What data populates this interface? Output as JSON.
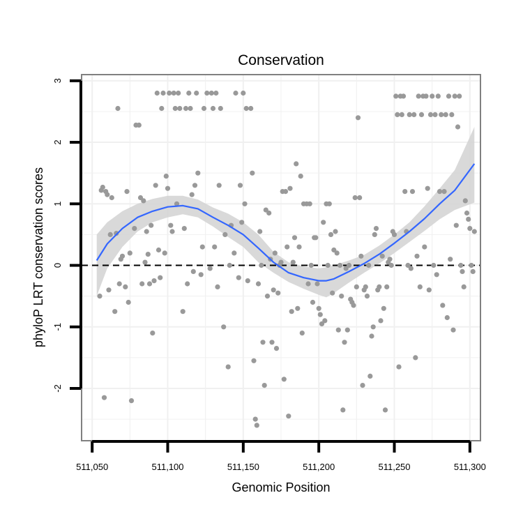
{
  "chart_data": {
    "type": "scatter",
    "title": "Conservation",
    "xlabel": "Genomic Position",
    "ylabel": "phyloP LRT conservation scores",
    "xlim": [
      511043,
      511307
    ],
    "ylim": [
      -2.85,
      3.1
    ],
    "x_ticks": [
      511050,
      511100,
      511150,
      511200,
      511250,
      511300
    ],
    "x_tick_labels": [
      "511,050",
      "511,100",
      "511,150",
      "511,200",
      "511,250",
      "511,300"
    ],
    "y_ticks": [
      -2,
      -1,
      0,
      1,
      2,
      3
    ],
    "y_tick_labels": [
      "-2",
      "-1",
      "0",
      "1",
      "2",
      "3"
    ],
    "grid": true,
    "reference_line": {
      "y": 0,
      "style": "dashed"
    },
    "colors": {
      "points": "#999999",
      "smooth": "#3366ff",
      "band": "#d2d2d2",
      "grid": "#f0f0f0",
      "frame": "#808080"
    },
    "points": [
      [
        511055,
        -0.5
      ],
      [
        511056,
        1.22
      ],
      [
        511057,
        1.27
      ],
      [
        511058,
        -2.15
      ],
      [
        511059,
        1.2
      ],
      [
        511060,
        1.15
      ],
      [
        511061,
        -0.4
      ],
      [
        511062,
        0.5
      ],
      [
        511063,
        1.1
      ],
      [
        511065,
        -0.75
      ],
      [
        511066,
        0.52
      ],
      [
        511067,
        2.55
      ],
      [
        511068,
        -0.3
      ],
      [
        511069,
        0.1
      ],
      [
        511070,
        0.15
      ],
      [
        511072,
        -0.35
      ],
      [
        511073,
        1.2
      ],
      [
        511074,
        -0.6
      ],
      [
        511075,
        0.2
      ],
      [
        511076,
        -2.2
      ],
      [
        511078,
        0.6
      ],
      [
        511079,
        2.28
      ],
      [
        511081,
        2.28
      ],
      [
        511082,
        1.1
      ],
      [
        511083,
        -0.3
      ],
      [
        511084,
        1.05
      ],
      [
        511085,
        0.05
      ],
      [
        511086,
        0.55
      ],
      [
        511087,
        0.18
      ],
      [
        511088,
        -0.3
      ],
      [
        511089,
        0.65
      ],
      [
        511090,
        -1.1
      ],
      [
        511091,
        -0.25
      ],
      [
        511092,
        1.3
      ],
      [
        511093,
        2.8
      ],
      [
        511094,
        0.25
      ],
      [
        511095,
        -0.2
      ],
      [
        511096,
        2.55
      ],
      [
        511097,
        2.8
      ],
      [
        511098,
        0.2
      ],
      [
        511099,
        1.45
      ],
      [
        511100,
        1.25
      ],
      [
        511101,
        2.8
      ],
      [
        511102,
        0.65
      ],
      [
        511103,
        0.55
      ],
      [
        511104,
        2.8
      ],
      [
        511105,
        2.55
      ],
      [
        511106,
        1.0
      ],
      [
        511107,
        2.8
      ],
      [
        511108,
        2.55
      ],
      [
        511110,
        -0.75
      ],
      [
        511111,
        0.6
      ],
      [
        511112,
        2.55
      ],
      [
        511113,
        -0.3
      ],
      [
        511114,
        2.8
      ],
      [
        511115,
        2.55
      ],
      [
        511116,
        1.15
      ],
      [
        511117,
        -0.1
      ],
      [
        511118,
        1.3
      ],
      [
        511119,
        2.8
      ],
      [
        511120,
        1.5
      ],
      [
        511122,
        -0.15
      ],
      [
        511123,
        0.3
      ],
      [
        511124,
        2.55
      ],
      [
        511126,
        2.8
      ],
      [
        511128,
        -0.05
      ],
      [
        511129,
        2.8
      ],
      [
        511130,
        2.55
      ],
      [
        511131,
        0.3
      ],
      [
        511132,
        2.8
      ],
      [
        511133,
        -0.35
      ],
      [
        511134,
        1.3
      ],
      [
        511135,
        2.55
      ],
      [
        511137,
        -1.0
      ],
      [
        511138,
        0.5
      ],
      [
        511140,
        -1.65
      ],
      [
        511141,
        0.0
      ],
      [
        511142,
        0.65
      ],
      [
        511144,
        0.2
      ],
      [
        511145,
        2.8
      ],
      [
        511147,
        -0.2
      ],
      [
        511148,
        1.3
      ],
      [
        511149,
        0.7
      ],
      [
        511150,
        2.8
      ],
      [
        511151,
        1.0
      ],
      [
        511152,
        2.55
      ],
      [
        511153,
        -0.25
      ],
      [
        511155,
        2.55
      ],
      [
        511156,
        1.5
      ],
      [
        511157,
        -1.55
      ],
      [
        511158,
        -2.5
      ],
      [
        511159,
        -2.6
      ],
      [
        511160,
        -0.3
      ],
      [
        511161,
        0.55
      ],
      [
        511162,
        0.0
      ],
      [
        511163,
        -1.25
      ],
      [
        511164,
        -1.95
      ],
      [
        511165,
        0.9
      ],
      [
        511166,
        -0.5
      ],
      [
        511167,
        0.85
      ],
      [
        511168,
        0.1
      ],
      [
        511169,
        -1.25
      ],
      [
        511170,
        -0.4
      ],
      [
        511171,
        0.2
      ],
      [
        511172,
        -1.35
      ],
      [
        511173,
        -0.45
      ],
      [
        511174,
        0.0
      ],
      [
        511175,
        0.05
      ],
      [
        511176,
        1.2
      ],
      [
        511177,
        -1.85
      ],
      [
        511178,
        1.2
      ],
      [
        511179,
        0.3
      ],
      [
        511180,
        -2.45
      ],
      [
        511181,
        1.25
      ],
      [
        511182,
        -0.75
      ],
      [
        511183,
        0.05
      ],
      [
        511184,
        0.45
      ],
      [
        511185,
        1.65
      ],
      [
        511186,
        -0.7
      ],
      [
        511187,
        0.3
      ],
      [
        511188,
        1.45
      ],
      [
        511189,
        -1.1
      ],
      [
        511190,
        1.0
      ],
      [
        511192,
        1.0
      ],
      [
        511193,
        -0.3
      ],
      [
        511194,
        1.0
      ],
      [
        511195,
        0.0
      ],
      [
        511196,
        -0.6
      ],
      [
        511197,
        0.45
      ],
      [
        511198,
        0.45
      ],
      [
        511199,
        -0.3
      ],
      [
        511200,
        -0.7
      ],
      [
        511201,
        -0.8
      ],
      [
        511202,
        -0.95
      ],
      [
        511203,
        0.7
      ],
      [
        511204,
        -0.9
      ],
      [
        511205,
        1.0
      ],
      [
        511206,
        0.0
      ],
      [
        511207,
        1.0
      ],
      [
        511208,
        0.5
      ],
      [
        511209,
        -0.45
      ],
      [
        511210,
        0.25
      ],
      [
        511211,
        0.55
      ],
      [
        511212,
        0.2
      ],
      [
        511213,
        -1.05
      ],
      [
        511214,
        0.0
      ],
      [
        511215,
        -0.5
      ],
      [
        511216,
        -2.35
      ],
      [
        511217,
        -1.25
      ],
      [
        511218,
        -0.05
      ],
      [
        511219,
        -1.05
      ],
      [
        511220,
        0.0
      ],
      [
        511221,
        -0.55
      ],
      [
        511222,
        -0.6
      ],
      [
        511223,
        -0.65
      ],
      [
        511224,
        1.1
      ],
      [
        511225,
        -0.35
      ],
      [
        511226,
        2.4
      ],
      [
        511227,
        1.1
      ],
      [
        511228,
        0.15
      ],
      [
        511229,
        -1.95
      ],
      [
        511230,
        -0.4
      ],
      [
        511231,
        -0.35
      ],
      [
        511232,
        -0.5
      ],
      [
        511233,
        0.0
      ],
      [
        511234,
        -1.8
      ],
      [
        511235,
        -1.15
      ],
      [
        511236,
        -1.0
      ],
      [
        511237,
        0.5
      ],
      [
        511238,
        0.6
      ],
      [
        511239,
        -0.4
      ],
      [
        511240,
        -0.35
      ],
      [
        511241,
        -0.9
      ],
      [
        511242,
        0.15
      ],
      [
        511243,
        -0.7
      ],
      [
        511244,
        -2.35
      ],
      [
        511245,
        -0.35
      ],
      [
        511246,
        0.05
      ],
      [
        511247,
        0.1
      ],
      [
        511248,
        0.0
      ],
      [
        511249,
        0.55
      ],
      [
        511250,
        0.5
      ],
      [
        511251,
        2.75
      ],
      [
        511252,
        2.45
      ],
      [
        511253,
        -1.65
      ],
      [
        511254,
        2.75
      ],
      [
        511255,
        2.45
      ],
      [
        511256,
        2.75
      ],
      [
        511257,
        1.2
      ],
      [
        511258,
        0.55
      ],
      [
        511259,
        0.0
      ],
      [
        511260,
        2.45
      ],
      [
        511261,
        -0.05
      ],
      [
        511262,
        1.2
      ],
      [
        511263,
        2.45
      ],
      [
        511264,
        -1.5
      ],
      [
        511265,
        0.15
      ],
      [
        511266,
        2.75
      ],
      [
        511267,
        -0.35
      ],
      [
        511268,
        2.45
      ],
      [
        511269,
        2.75
      ],
      [
        511270,
        0.3
      ],
      [
        511271,
        2.75
      ],
      [
        511272,
        1.25
      ],
      [
        511273,
        -0.4
      ],
      [
        511274,
        2.45
      ],
      [
        511275,
        2.75
      ],
      [
        511276,
        0.0
      ],
      [
        511277,
        2.45
      ],
      [
        511278,
        -0.15
      ],
      [
        511279,
        2.75
      ],
      [
        511280,
        1.2
      ],
      [
        511281,
        2.45
      ],
      [
        511282,
        -0.65
      ],
      [
        511283,
        1.2
      ],
      [
        511284,
        2.45
      ],
      [
        511285,
        -0.85
      ],
      [
        511286,
        2.75
      ],
      [
        511287,
        0.1
      ],
      [
        511288,
        2.45
      ],
      [
        511289,
        -1.05
      ],
      [
        511290,
        2.75
      ],
      [
        511291,
        0.65
      ],
      [
        511292,
        2.25
      ],
      [
        511293,
        2.75
      ],
      [
        511294,
        0.0
      ],
      [
        511295,
        -0.1
      ],
      [
        511296,
        -0.35
      ],
      [
        511297,
        1.05
      ],
      [
        511298,
        0.85
      ],
      [
        511299,
        0.75
      ],
      [
        511300,
        0.6
      ],
      [
        511301,
        0.0
      ],
      [
        511302,
        -0.1
      ],
      [
        511303,
        0.55
      ]
    ],
    "smooth_line": {
      "x": [
        511053,
        511060,
        511070,
        511080,
        511090,
        511100,
        511110,
        511120,
        511130,
        511140,
        511150,
        511160,
        511170,
        511180,
        511190,
        511200,
        511205,
        511210,
        511220,
        511230,
        511240,
        511250,
        511260,
        511270,
        511280,
        511290,
        511303
      ],
      "y": [
        0.08,
        0.35,
        0.6,
        0.78,
        0.88,
        0.95,
        0.97,
        0.92,
        0.78,
        0.65,
        0.5,
        0.28,
        0.05,
        -0.12,
        -0.2,
        -0.25,
        -0.25,
        -0.22,
        -0.1,
        0.03,
        0.18,
        0.36,
        0.55,
        0.76,
        1.0,
        1.22,
        1.65
      ],
      "lower": [
        -0.5,
        -0.05,
        0.3,
        0.55,
        0.7,
        0.78,
        0.83,
        0.78,
        0.63,
        0.46,
        0.3,
        0.05,
        -0.12,
        -0.27,
        -0.38,
        -0.48,
        -0.52,
        -0.45,
        -0.28,
        -0.12,
        0.03,
        0.2,
        0.38,
        0.56,
        0.75,
        0.9,
        1.02
      ],
      "upper": [
        0.5,
        0.7,
        0.88,
        1.0,
        1.08,
        1.13,
        1.13,
        1.07,
        0.94,
        0.84,
        0.7,
        0.5,
        0.22,
        0.05,
        -0.02,
        -0.05,
        -0.03,
        0.0,
        0.08,
        0.17,
        0.32,
        0.5,
        0.7,
        0.96,
        1.25,
        1.55,
        2.25
      ]
    }
  }
}
